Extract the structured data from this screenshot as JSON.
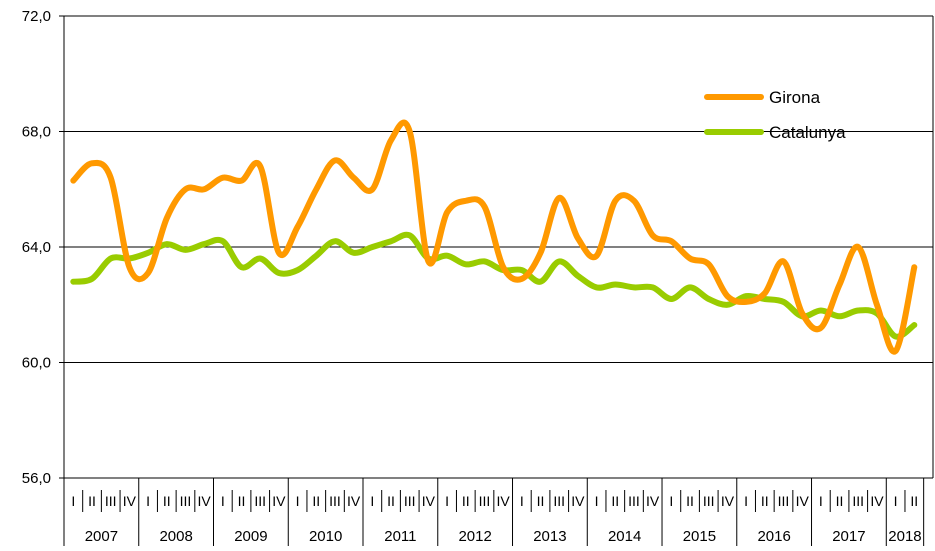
{
  "chart_data": {
    "type": "line",
    "title": "",
    "xlabel": "",
    "ylabel": "",
    "ylim": [
      56.0,
      72.0
    ],
    "yticks": [
      "72,0",
      "68,0",
      "64,0",
      "60,0",
      "56,0"
    ],
    "ytick_values": [
      72,
      68,
      64,
      60,
      56
    ],
    "grid": true,
    "legend_position": "top-right",
    "quarter_labels": [
      "I",
      "II",
      "III",
      "IV"
    ],
    "years": [
      "2007",
      "2008",
      "2009",
      "2010",
      "2011",
      "2012",
      "2013",
      "2014",
      "2015",
      "2016",
      "2017",
      "2018"
    ],
    "quarters_per_year": [
      4,
      4,
      4,
      4,
      4,
      4,
      4,
      4,
      4,
      4,
      4,
      2
    ],
    "series": [
      {
        "name": "Girona",
        "color": "#ff9900",
        "values": [
          66.3,
          66.9,
          66.4,
          63.3,
          63.1,
          65.0,
          66.0,
          66.0,
          66.4,
          66.3,
          66.8,
          63.8,
          64.7,
          66.0,
          67.0,
          66.4,
          66.0,
          67.7,
          68.0,
          63.5,
          65.2,
          65.6,
          65.4,
          63.3,
          62.9,
          63.8,
          65.7,
          64.3,
          63.7,
          65.6,
          65.6,
          64.4,
          64.2,
          63.6,
          63.4,
          62.3,
          62.1,
          62.4,
          63.5,
          61.7,
          61.2,
          62.7,
          64.0,
          62.0,
          60.4,
          63.3
        ]
      },
      {
        "name": "Catalunya",
        "color": "#99cc00",
        "values": [
          62.8,
          62.9,
          63.6,
          63.6,
          63.8,
          64.1,
          63.9,
          64.1,
          64.2,
          63.3,
          63.6,
          63.1,
          63.2,
          63.7,
          64.2,
          63.8,
          64.0,
          64.2,
          64.4,
          63.6,
          63.7,
          63.4,
          63.5,
          63.2,
          63.2,
          62.8,
          63.5,
          63.0,
          62.6,
          62.7,
          62.6,
          62.6,
          62.2,
          62.6,
          62.2,
          62.0,
          62.3,
          62.2,
          62.1,
          61.6,
          61.8,
          61.6,
          61.8,
          61.7,
          60.9,
          61.3
        ]
      }
    ]
  }
}
